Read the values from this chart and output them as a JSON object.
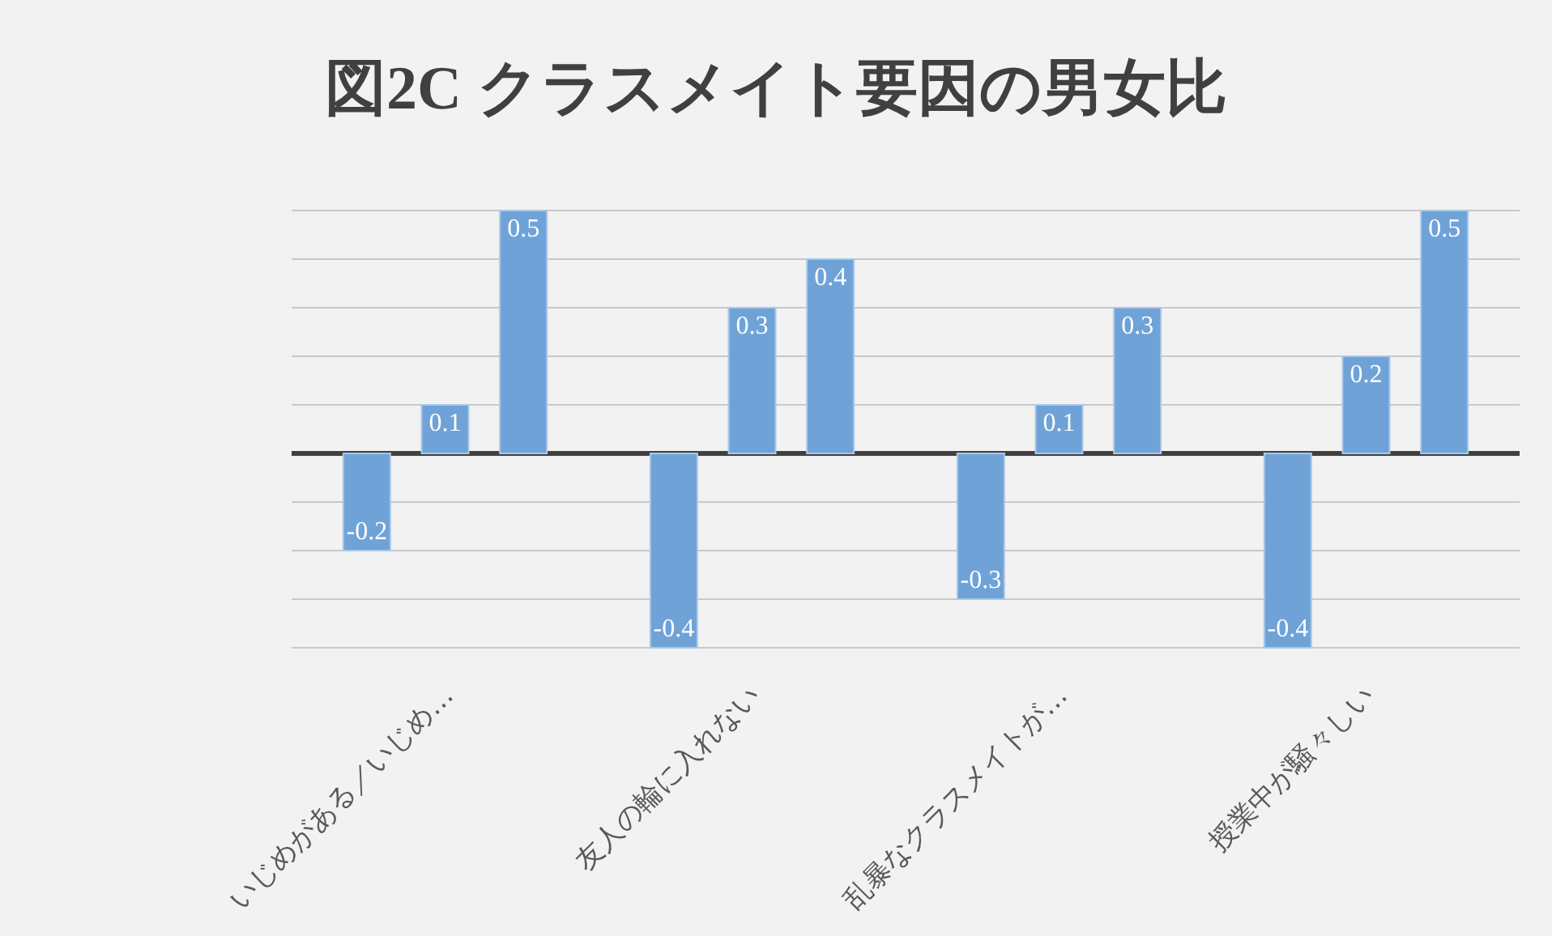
{
  "chart_data": {
    "type": "bar",
    "title": "図2C クラスメイト要因の男女比",
    "categories": [
      "いじめがある／いじめ…",
      "友人の輪に入れない",
      "乱暴なクラスメイトが…",
      "授業中が騒々しい"
    ],
    "series": [
      {
        "color": "#6fa3d8",
        "values": [
          -0.2,
          -0.4,
          -0.3,
          -0.4
        ]
      },
      {
        "color": "#6fa3d8",
        "values": [
          0.1,
          0.3,
          0.1,
          0.2
        ]
      },
      {
        "color": "#6fa3d8",
        "values": [
          0.5,
          0.4,
          0.3,
          0.5
        ]
      }
    ],
    "tick_labels": "x",
    "grid": "y",
    "data_labels": true
  }
}
